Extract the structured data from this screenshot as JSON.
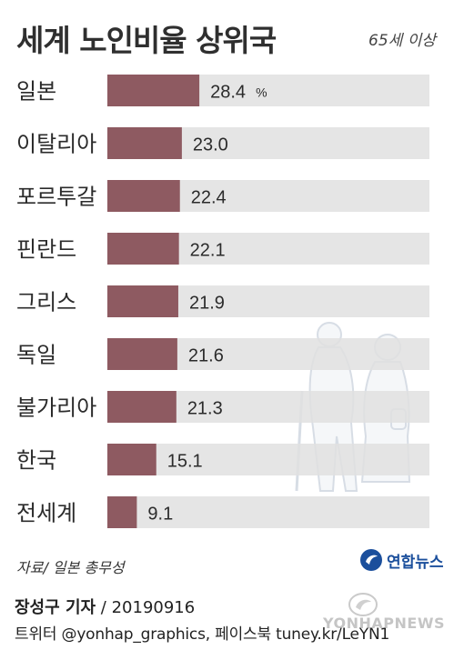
{
  "header": {
    "title": "세계 노인비율 상위국",
    "unit": "65세 이상"
  },
  "chart_data": {
    "type": "bar",
    "orientation": "horizontal",
    "title": "세계 노인비율 상위국",
    "subtitle": "65세 이상",
    "categories": [
      "일본",
      "이탈리아",
      "포르투갈",
      "핀란드",
      "그리스",
      "독일",
      "불가리아",
      "한국",
      "전세계"
    ],
    "values": [
      28.4,
      23.0,
      22.4,
      22.1,
      21.9,
      21.6,
      21.3,
      15.1,
      9.1
    ],
    "value_labels": [
      "28.4",
      "23.0",
      "22.4",
      "22.1",
      "21.9",
      "21.6",
      "21.3",
      "15.1",
      "9.1"
    ],
    "first_value_unit": "%",
    "xlim": [
      0,
      100
    ],
    "grid": false,
    "legend": "none",
    "bar_color": "#8e5a61",
    "track_color": "#e0e0e0"
  },
  "footer": {
    "source": "자료/ 일본 총무성",
    "logo_text": "연합뉴스",
    "reporter": "장성구 기자",
    "date_sep": " / ",
    "date": "20190916",
    "social": "트위터 @yonhap_graphics, 페이스북 tuney.kr/LeYN1",
    "watermark": "YONHAPNEWS"
  }
}
